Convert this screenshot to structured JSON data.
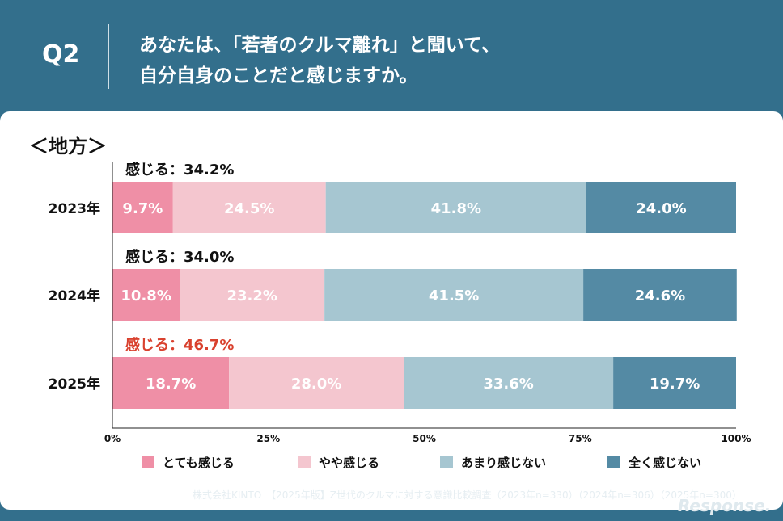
{
  "header": {
    "question_number": "Q2",
    "question_line1": "あなたは、「若者のクルマ離れ」と聞いて、",
    "question_line2": "自分自身のことだと感じますか。"
  },
  "chart_data": {
    "type": "bar",
    "orientation": "horizontal",
    "stacked": true,
    "title": "＜地方＞",
    "categories": [
      "2023年",
      "2024年",
      "2025年"
    ],
    "series": [
      {
        "name": "とても感じる",
        "values": [
          9.7,
          10.8,
          18.7
        ],
        "labels": [
          "9.7%",
          "10.8%",
          "18.7%"
        ],
        "color": "#ef8fa6"
      },
      {
        "name": "やや感じる",
        "values": [
          24.5,
          23.2,
          28.0
        ],
        "labels": [
          "24.5%",
          "23.2%",
          "28.0%"
        ],
        "color": "#f4c6cf"
      },
      {
        "name": "あまり感じない",
        "values": [
          41.8,
          41.5,
          33.6
        ],
        "labels": [
          "41.8%",
          "41.5%",
          "33.6%"
        ],
        "color": "#a6c6d1"
      },
      {
        "name": "全く感じない",
        "values": [
          24.0,
          24.6,
          19.7
        ],
        "labels": [
          "24.0%",
          "24.6%",
          "19.7%"
        ],
        "color": "#548aa4"
      }
    ],
    "annotations": [
      {
        "text": "感じる：34.2%",
        "highlight": false
      },
      {
        "text": "感じる：34.0%",
        "highlight": false
      },
      {
        "text": "感じる：46.7%",
        "highlight": true
      }
    ],
    "xlim": [
      0,
      100
    ],
    "x_ticks": [
      "0%",
      "25%",
      "50%",
      "75%",
      "100%"
    ],
    "x_tick_values": [
      0,
      25,
      50,
      75,
      100
    ],
    "legend_position": "bottom",
    "highlight_color": "#d9412e"
  },
  "footer": {
    "logo": "KINTO",
    "source": "株式会社KINTO　【2025年版】Z世代のクルマに対する意識比較調査（2023年n=330）（2024年n=306）（2025年n=300）",
    "watermark": "Response."
  }
}
